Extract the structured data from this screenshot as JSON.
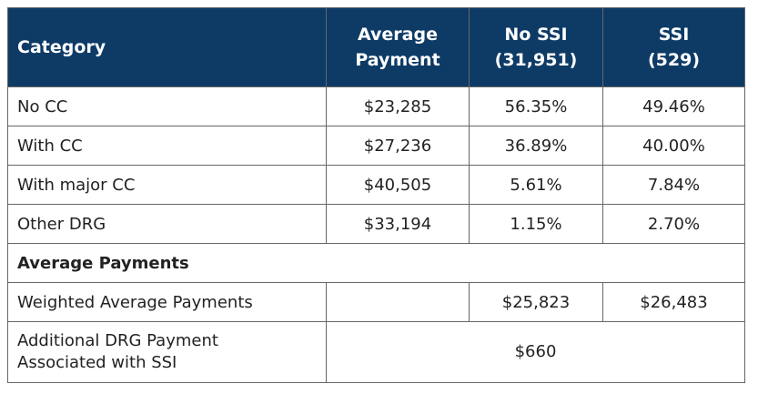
{
  "table": {
    "header": [
      [
        "Category"
      ],
      [
        "Average",
        "Payment"
      ],
      [
        "No SSI",
        "(31,951)"
      ],
      [
        "SSI",
        "(529)"
      ]
    ],
    "rows": [
      [
        "No CC",
        "$23,285",
        "56.35%",
        "49.46%"
      ],
      [
        "With CC",
        "$27,236",
        "36.89%",
        "40.00%"
      ],
      [
        "With major CC",
        "$40,505",
        "5.61%",
        "7.84%"
      ],
      [
        "Other DRG",
        "$33,194",
        "1.15%",
        "2.70%"
      ]
    ],
    "section": "Average Payments",
    "weighted": {
      "label": "Weighted Average Payments",
      "no_ssi": "$25,823",
      "ssi": "$26,483"
    },
    "additional": {
      "label": [
        "Additional DRG Payment",
        "Associated with SSI"
      ],
      "value": "$660"
    }
  }
}
